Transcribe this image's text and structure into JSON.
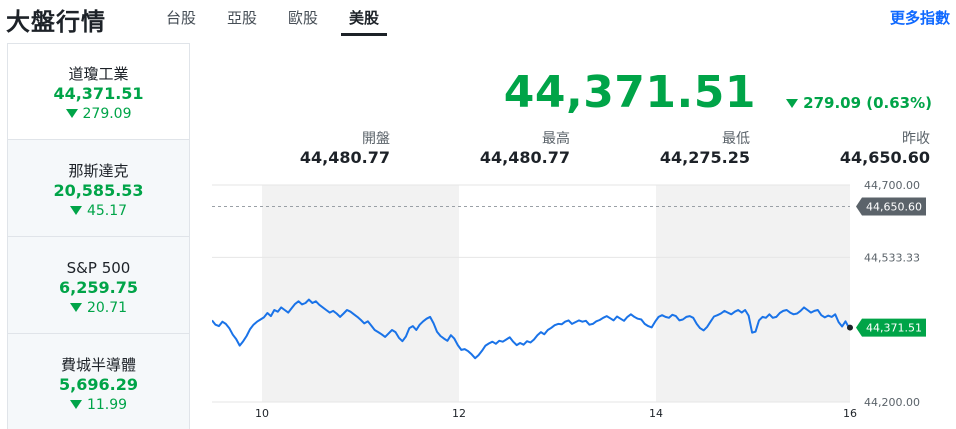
{
  "header": {
    "title": "大盤行情",
    "tabs": [
      {
        "label": "台股",
        "active": false
      },
      {
        "label": "亞股",
        "active": false
      },
      {
        "label": "歐股",
        "active": false
      },
      {
        "label": "美股",
        "active": true
      }
    ],
    "more_link": "更多指數"
  },
  "sidebar": {
    "items": [
      {
        "name": "道瓊工業",
        "price": "44,371.51",
        "change": "279.09",
        "direction": "down",
        "active": true
      },
      {
        "name": "那斯達克",
        "price": "20,585.53",
        "change": "45.17",
        "direction": "down",
        "active": false
      },
      {
        "name": "S&P 500",
        "price": "6,259.75",
        "change": "20.71",
        "direction": "down",
        "active": false
      },
      {
        "name": "費城半導體",
        "price": "5,696.29",
        "change": "11.99",
        "direction": "down",
        "active": false
      }
    ]
  },
  "quote": {
    "price": "44,371.51",
    "change": "279.09 (0.63%)",
    "direction": "down",
    "stats": [
      {
        "label": "開盤",
        "value": "44,480.77"
      },
      {
        "label": "最高",
        "value": "44,480.77"
      },
      {
        "label": "最低",
        "value": "44,275.25"
      },
      {
        "label": "昨收",
        "value": "44,650.60"
      }
    ]
  },
  "colors": {
    "up_down_green": "#00a448",
    "line_blue": "#1a73e8",
    "prev_close_tag": "#5b636a",
    "link_blue": "#0f69ff"
  },
  "chart_data": {
    "type": "line",
    "y_ticks": [
      "44,700.00",
      "44,533.33",
      "44,200.00"
    ],
    "ylim": [
      44200,
      44700
    ],
    "x_ticks": [
      "10",
      "12",
      "14",
      "16"
    ],
    "prev_close": 44650.6,
    "prev_close_label": "44,650.60",
    "last": 44371.51,
    "last_label": "44,371.51",
    "grid": true,
    "series": [
      {
        "values": [
          44388,
          44378,
          44375,
          44385,
          44380,
          44370,
          44355,
          44345,
          44330,
          44340,
          44352,
          44368,
          44378,
          44385,
          44390,
          44395,
          44405,
          44398,
          44412,
          44408,
          44418,
          44412,
          44406,
          44416,
          44426,
          44432,
          44425,
          44428,
          44436,
          44428,
          44432,
          44424,
          44418,
          44412,
          44406,
          44410,
          44404,
          44396,
          44404,
          44412,
          44408,
          44402,
          44396,
          44389,
          44381,
          44386,
          44376,
          44366,
          44361,
          44356,
          44350,
          44358,
          44366,
          44361,
          44348,
          44340,
          44351,
          44370,
          44375,
          44366,
          44378,
          44386,
          44392,
          44396,
          44381,
          44362,
          44352,
          44346,
          44341,
          44354,
          44346,
          44331,
          44320,
          44322,
          44317,
          44310,
          44301,
          44308,
          44318,
          44330,
          44335,
          44339,
          44334,
          44341,
          44339,
          44344,
          44349,
          44339,
          44331,
          44336,
          44332,
          44340,
          44337,
          44344,
          44354,
          44361,
          44356,
          44366,
          44371,
          44377,
          44380,
          44379,
          44385,
          44388,
          44380,
          44384,
          44388,
          44385,
          44387,
          44378,
          44380,
          44386,
          44389,
          44394,
          44398,
          44393,
          44388,
          44397,
          44392,
          44387,
          44396,
          44402,
          44396,
          44392,
          44390,
          44380,
          44375,
          44372,
          44385,
          44396,
          44400,
          44396,
          44394,
          44401,
          44398,
          44388,
          44390,
          44396,
          44398,
          44394,
          44380,
          44370,
          44365,
          44373,
          44385,
          44397,
          44400,
          44404,
          44410,
          44406,
          44402,
          44408,
          44412,
          44406,
          44412,
          44399,
          44360,
          44362,
          44388,
          44396,
          44394,
          44402,
          44394,
          44396,
          44405,
          44410,
          44412,
          44406,
          44402,
          44404,
          44410,
          44418,
          44412,
          44406,
          44410,
          44412,
          44400,
          44395,
          44399,
          44396,
          44402,
          44384,
          44374,
          44386,
          44371
        ]
      }
    ]
  }
}
